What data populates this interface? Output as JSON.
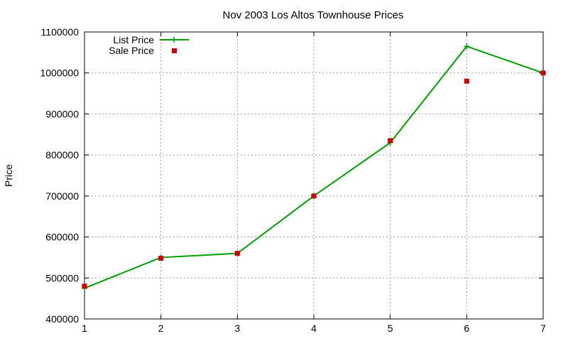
{
  "chart_data": {
    "type": "line",
    "title": "Nov 2003 Los Altos Townhouse Prices",
    "xlabel": "",
    "ylabel": "Price",
    "xlim": [
      1,
      7
    ],
    "ylim": [
      400000,
      1100000
    ],
    "x_ticks": [
      1,
      2,
      3,
      4,
      5,
      6,
      7
    ],
    "y_ticks": [
      400000,
      500000,
      600000,
      700000,
      800000,
      900000,
      1000000,
      1100000
    ],
    "x_tick_labels": [
      "1",
      "2",
      "3",
      "4",
      "5",
      "6",
      "7"
    ],
    "y_tick_labels": [
      "400000",
      "500000",
      "600000",
      "700000",
      "800000",
      "900000",
      "1000000",
      "1100000"
    ],
    "grid": true,
    "legend_position": "top-left",
    "series": [
      {
        "name": "List Price",
        "style": "line+cross",
        "color": "#00a000",
        "x": [
          1,
          2,
          3,
          4,
          5,
          6,
          7
        ],
        "values": [
          475000,
          550000,
          560000,
          700000,
          830000,
          1065000,
          1000000
        ]
      },
      {
        "name": "Sale Price",
        "style": "square",
        "color": "#cc0000",
        "x": [
          1,
          2,
          3,
          4,
          5,
          6,
          7
        ],
        "values": [
          480000,
          548000,
          560000,
          700000,
          835000,
          980000,
          1000000
        ]
      }
    ]
  }
}
